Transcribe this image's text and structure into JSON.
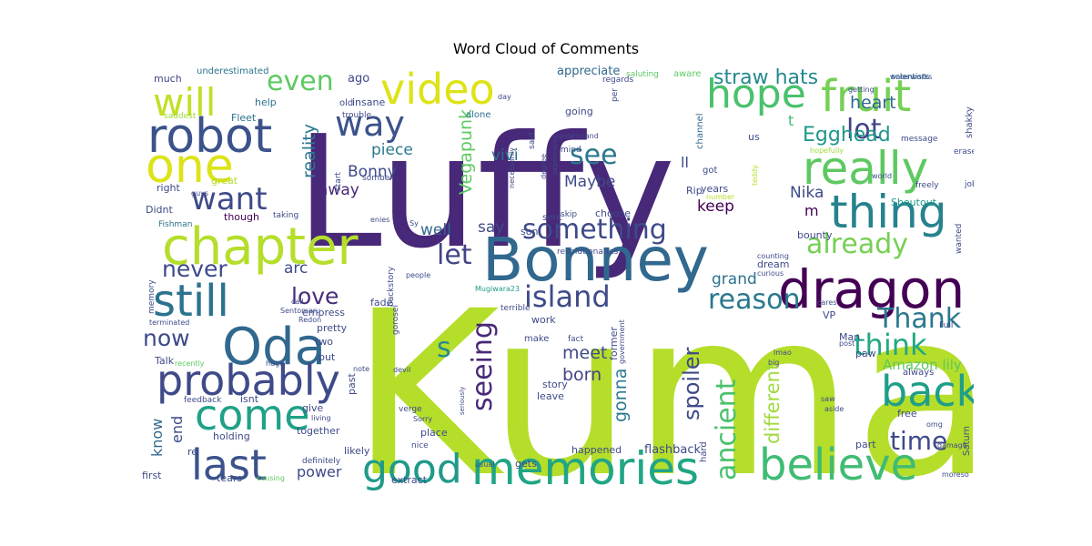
{
  "chart_data": {
    "type": "wordcloud",
    "title": "Word Cloud of Comments",
    "words": [
      {
        "text": "Kuma",
        "weight": 100,
        "color": "#b5de2b"
      },
      {
        "text": "Luffy",
        "weight": 88,
        "color": "#482878"
      },
      {
        "text": "Bonney",
        "weight": 40,
        "color": "#31688e"
      },
      {
        "text": "dragon",
        "weight": 36,
        "color": "#440154"
      },
      {
        "text": "chapter",
        "weight": 34,
        "color": "#b5de2b"
      },
      {
        "text": "robot",
        "weight": 32,
        "color": "#3b528b"
      },
      {
        "text": "memories",
        "weight": 31,
        "color": "#21a585"
      },
      {
        "text": "Oda",
        "weight": 31,
        "color": "#31688e"
      },
      {
        "text": "one",
        "weight": 30,
        "color": "#dde318"
      },
      {
        "text": "really",
        "weight": 30,
        "color": "#5ec962"
      },
      {
        "text": "thing",
        "weight": 30,
        "color": "#26828e"
      },
      {
        "text": "fruit",
        "weight": 30,
        "color": "#75d054"
      },
      {
        "text": "believe",
        "weight": 28,
        "color": "#3fbc73"
      },
      {
        "text": "probably",
        "weight": 28,
        "color": "#3e4a89"
      },
      {
        "text": "still",
        "weight": 28,
        "color": "#2c728e"
      },
      {
        "text": "come",
        "weight": 28,
        "color": "#1fa187"
      },
      {
        "text": "last",
        "weight": 28,
        "color": "#3b528b"
      },
      {
        "text": "video",
        "weight": 27,
        "color": "#dde318"
      },
      {
        "text": "back",
        "weight": 27,
        "color": "#1f9e89"
      },
      {
        "text": "hope",
        "weight": 26,
        "color": "#4ac16d"
      },
      {
        "text": "good",
        "weight": 26,
        "color": "#1f9a8a"
      },
      {
        "text": "will",
        "weight": 26,
        "color": "#c2df23"
      },
      {
        "text": "way",
        "weight": 24,
        "color": "#3b528b"
      },
      {
        "text": "want",
        "weight": 22,
        "color": "#3e4a89"
      },
      {
        "text": "something",
        "weight": 22,
        "color": "#3e4a89"
      },
      {
        "text": "ancient",
        "weight": 22,
        "color": "#4ac16d"
      },
      {
        "text": "island",
        "weight": 21,
        "color": "#3e4a89"
      },
      {
        "text": "reason",
        "weight": 21,
        "color": "#2a788e"
      },
      {
        "text": "seeing",
        "weight": 21,
        "color": "#482878"
      },
      {
        "text": "think",
        "weight": 21,
        "color": "#22a884"
      },
      {
        "text": "Thank",
        "weight": 21,
        "color": "#2a788e"
      },
      {
        "text": "even",
        "weight": 21,
        "color": "#5ec962"
      },
      {
        "text": "lot",
        "weight": 21,
        "color": "#414487"
      },
      {
        "text": "see",
        "weight": 21,
        "color": "#2a788e"
      },
      {
        "text": "let",
        "weight": 21,
        "color": "#414487"
      },
      {
        "text": "already",
        "weight": 20,
        "color": "#75d054"
      },
      {
        "text": "time",
        "weight": 20,
        "color": "#3e4a89"
      },
      {
        "text": "love",
        "weight": 17,
        "color": "#472d7b"
      },
      {
        "text": "never",
        "weight": 17,
        "color": "#3e4a89"
      },
      {
        "text": "now",
        "weight": 17,
        "color": "#3e4a89"
      },
      {
        "text": "s",
        "weight": 17,
        "color": "#23898e"
      },
      {
        "text": "Egghead",
        "weight": 17,
        "color": "#1f968b"
      },
      {
        "text": "straw hats",
        "weight": 14,
        "color": "#23898e"
      },
      {
        "text": "different",
        "weight": 14,
        "color": "#9fda3a"
      },
      {
        "text": "spoiler",
        "weight": 14,
        "color": "#3e4a89"
      },
      {
        "text": "reality",
        "weight": 12,
        "color": "#2a788e"
      },
      {
        "text": "gonna",
        "weight": 12,
        "color": "#2a788e"
      },
      {
        "text": "Vegapunk",
        "weight": 12,
        "color": "#5ec962"
      },
      {
        "text": "heart",
        "weight": 12,
        "color": "#31688e"
      },
      {
        "text": "meet",
        "weight": 12,
        "color": "#3e4a89"
      },
      {
        "text": "born",
        "weight": 12,
        "color": "#414487"
      },
      {
        "text": "Maybe",
        "weight": 11,
        "color": "#3e4a89"
      },
      {
        "text": "vivi",
        "weight": 11,
        "color": "#2c728e"
      },
      {
        "text": "piece",
        "weight": 11,
        "color": "#2a788e"
      },
      {
        "text": "Bonny",
        "weight": 11,
        "color": "#3e4a89"
      },
      {
        "text": "away",
        "weight": 11,
        "color": "#482878"
      },
      {
        "text": "keep",
        "weight": 11,
        "color": "#440154"
      },
      {
        "text": "arc",
        "weight": 11,
        "color": "#3e4a89"
      },
      {
        "text": "well",
        "weight": 11,
        "color": "#31688e"
      },
      {
        "text": "say",
        "weight": 11,
        "color": "#3e4a89"
      },
      {
        "text": "grand",
        "weight": 11,
        "color": "#2c728e"
      },
      {
        "text": "Nika",
        "weight": 11,
        "color": "#3e4a89"
      },
      {
        "text": "know",
        "weight": 10,
        "color": "#31688e"
      },
      {
        "text": "end",
        "weight": 10,
        "color": "#3e4a89"
      },
      {
        "text": "power",
        "weight": 10,
        "color": "#3e4a89"
      },
      {
        "text": "Amazon lily",
        "weight": 9,
        "color": "#5ec962"
      },
      {
        "text": "flashback",
        "weight": 8,
        "color": "#3e4a89"
      },
      {
        "text": "ll",
        "weight": 10,
        "color": "#3e4a89"
      },
      {
        "text": "m",
        "weight": 10,
        "color": "#440154"
      },
      {
        "text": "t",
        "weight": 10,
        "color": "#3fbc73"
      },
      {
        "text": "appreciate",
        "weight": 8,
        "color": "#31688e"
      },
      {
        "text": "much",
        "weight": 7,
        "color": "#414487"
      },
      {
        "text": "underestimated",
        "weight": 6,
        "color": "#2c728e"
      },
      {
        "text": "ago",
        "weight": 7,
        "color": "#3e4a89"
      },
      {
        "text": "saluting",
        "weight": 5,
        "color": "#5ec962"
      },
      {
        "text": "aware",
        "weight": 5,
        "color": "#5ec962"
      },
      {
        "text": "scientists",
        "weight": 5,
        "color": "#2c728e"
      },
      {
        "text": "help",
        "weight": 7,
        "color": "#2c728e"
      },
      {
        "text": "old",
        "weight": 6,
        "color": "#3e4a89"
      },
      {
        "text": "insane",
        "weight": 6,
        "color": "#3e4a89"
      },
      {
        "text": "alone",
        "weight": 6,
        "color": "#2c728e"
      },
      {
        "text": "going",
        "weight": 7,
        "color": "#3e4a89"
      },
      {
        "text": "regards",
        "weight": 5,
        "color": "#3e4a89"
      },
      {
        "text": "day",
        "weight": 5,
        "color": "#3e4a89"
      },
      {
        "text": "per",
        "weight": 5,
        "color": "#3e4a89"
      },
      {
        "text": "channel",
        "weight": 6,
        "color": "#31688e"
      },
      {
        "text": "shakky",
        "weight": 6,
        "color": "#3e4a89"
      },
      {
        "text": "saddest",
        "weight": 5,
        "color": "#9fda3a"
      },
      {
        "text": "Fleet",
        "weight": 7,
        "color": "#2c728e"
      },
      {
        "text": "trouble",
        "weight": 5,
        "color": "#3e4a89"
      },
      {
        "text": "mind",
        "weight": 5,
        "color": "#3e4a89"
      },
      {
        "text": "us",
        "weight": 6,
        "color": "#3e4a89"
      },
      {
        "text": "message",
        "weight": 5,
        "color": "#3e4a89"
      },
      {
        "text": "erased",
        "weight": 5,
        "color": "#3e4a89"
      },
      {
        "text": "hopefully",
        "weight": 5,
        "color": "#9fda3a"
      },
      {
        "text": "teddy",
        "weight": 4,
        "color": "#b5de2b"
      },
      {
        "text": "great",
        "weight": 7,
        "color": "#b5de2b"
      },
      {
        "text": "right",
        "weight": 7,
        "color": "#3e4a89"
      },
      {
        "text": "guys",
        "weight": 5,
        "color": "#3e4a89"
      },
      {
        "text": "start",
        "weight": 5,
        "color": "#3e4a89"
      },
      {
        "text": "necessarily",
        "weight": 4,
        "color": "#3e4a89"
      },
      {
        "text": "said",
        "weight": 5,
        "color": "#3e4a89"
      },
      {
        "text": "somber",
        "weight": 5,
        "color": "#3e4a89"
      },
      {
        "text": "degree",
        "weight": 5,
        "color": "#3e4a89"
      },
      {
        "text": "experienced",
        "weight": 4,
        "color": "#3e4a89"
      },
      {
        "text": "Rip",
        "weight": 6,
        "color": "#3e4a89"
      },
      {
        "text": "got",
        "weight": 6,
        "color": "#3e4a89"
      },
      {
        "text": "years",
        "weight": 6,
        "color": "#3e4a89"
      },
      {
        "text": "number",
        "weight": 4,
        "color": "#b5de2b"
      },
      {
        "text": "world",
        "weight": 5,
        "color": "#3e4a89"
      },
      {
        "text": "freely",
        "weight": 5,
        "color": "#3e4a89"
      },
      {
        "text": "job",
        "weight": 5,
        "color": "#3e4a89"
      },
      {
        "text": "Didnt",
        "weight": 7,
        "color": "#3e4a89"
      },
      {
        "text": "Fishman",
        "weight": 5,
        "color": "#2c728e"
      },
      {
        "text": "though",
        "weight": 7,
        "color": "#440154"
      },
      {
        "text": "taking",
        "weight": 5,
        "color": "#3e4a89"
      },
      {
        "text": "enies",
        "weight": 5,
        "color": "#3e4a89"
      },
      {
        "text": "Sy",
        "weight": 5,
        "color": "#3e4a89"
      },
      {
        "text": "son",
        "weight": 7,
        "color": "#3e4a89"
      },
      {
        "text": "sent",
        "weight": 6,
        "color": "#3e4a89"
      },
      {
        "text": "skip",
        "weight": 5,
        "color": "#3e4a89"
      },
      {
        "text": "choose",
        "weight": 7,
        "color": "#3e4a89"
      },
      {
        "text": "Shoutout",
        "weight": 7,
        "color": "#1f9a8a"
      },
      {
        "text": "bounty",
        "weight": 7,
        "color": "#3e4a89"
      },
      {
        "text": "wanted",
        "weight": 5,
        "color": "#3e4a89"
      },
      {
        "text": "memory",
        "weight": 5,
        "color": "#3e4a89"
      },
      {
        "text": "revolutionaries",
        "weight": 5,
        "color": "#3e4a89"
      },
      {
        "text": "dream",
        "weight": 7,
        "color": "#3e4a89"
      },
      {
        "text": "counting",
        "weight": 5,
        "color": "#3e4a89"
      },
      {
        "text": "curious",
        "weight": 5,
        "color": "#3e4a89"
      },
      {
        "text": "call",
        "weight": 5,
        "color": "#3e4a89"
      },
      {
        "text": "Redon",
        "weight": 5,
        "color": "#3e4a89"
      },
      {
        "text": "fade",
        "weight": 7,
        "color": "#3e4a89"
      },
      {
        "text": "backstory",
        "weight": 6,
        "color": "#3e4a89"
      },
      {
        "text": "people",
        "weight": 5,
        "color": "#3e4a89"
      },
      {
        "text": "Mugiwara23",
        "weight": 5,
        "color": "#1f9a8a"
      },
      {
        "text": "VP",
        "weight": 7,
        "color": "#3e4a89"
      },
      {
        "text": "cares",
        "weight": 5,
        "color": "#3e4a89"
      },
      {
        "text": "Full",
        "weight": 5,
        "color": "#3e4a89"
      },
      {
        "text": "empress",
        "weight": 7,
        "color": "#3e4a89"
      },
      {
        "text": "gorosei",
        "weight": 6,
        "color": "#3e4a89"
      },
      {
        "text": "terrible",
        "weight": 5,
        "color": "#3e4a89"
      },
      {
        "text": "Man",
        "weight": 7,
        "color": "#3e4a89"
      },
      {
        "text": "terminated",
        "weight": 5,
        "color": "#3e4a89"
      },
      {
        "text": "Sentomaru",
        "weight": 5,
        "color": "#3e4a89"
      },
      {
        "text": "work",
        "weight": 7,
        "color": "#3e4a89"
      },
      {
        "text": "pretty",
        "weight": 7,
        "color": "#3e4a89"
      },
      {
        "text": "two",
        "weight": 7,
        "color": "#3e4a89"
      },
      {
        "text": "former",
        "weight": 7,
        "color": "#3e4a89"
      },
      {
        "text": "make",
        "weight": 6,
        "color": "#3e4a89"
      },
      {
        "text": "fact",
        "weight": 5,
        "color": "#3e4a89"
      },
      {
        "text": "recently",
        "weight": 5,
        "color": "#5ec962"
      },
      {
        "text": "huge",
        "weight": 5,
        "color": "#3e4a89"
      },
      {
        "text": "Talk",
        "weight": 7,
        "color": "#3e4a89"
      },
      {
        "text": "put",
        "weight": 7,
        "color": "#3e4a89"
      },
      {
        "text": "note",
        "weight": 5,
        "color": "#3e4a89"
      },
      {
        "text": "government",
        "weight": 5,
        "color": "#3e4a89"
      },
      {
        "text": "lmao",
        "weight": 5,
        "color": "#3e4a89"
      },
      {
        "text": "post",
        "weight": 5,
        "color": "#3e4a89"
      },
      {
        "text": "big",
        "weight": 5,
        "color": "#3e4a89"
      },
      {
        "text": "paw",
        "weight": 7,
        "color": "#3e4a89"
      },
      {
        "text": "always",
        "weight": 7,
        "color": "#3e4a89"
      },
      {
        "text": "past",
        "weight": 7,
        "color": "#3e4a89"
      },
      {
        "text": "devil",
        "weight": 5,
        "color": "#3e4a89"
      },
      {
        "text": "story",
        "weight": 7,
        "color": "#3e4a89"
      },
      {
        "text": "leave",
        "weight": 7,
        "color": "#3e4a89"
      },
      {
        "text": "feedback",
        "weight": 5,
        "color": "#3e4a89"
      },
      {
        "text": "isnt",
        "weight": 7,
        "color": "#3e4a89"
      },
      {
        "text": "verge",
        "weight": 5,
        "color": "#3e4a89"
      },
      {
        "text": "seriously",
        "weight": 4,
        "color": "#3e4a89"
      },
      {
        "text": "saw",
        "weight": 5,
        "color": "#3e4a89"
      },
      {
        "text": "aside",
        "weight": 5,
        "color": "#3e4a89"
      },
      {
        "text": "give",
        "weight": 7,
        "color": "#3e4a89"
      },
      {
        "text": "living",
        "weight": 5,
        "color": "#3e4a89"
      },
      {
        "text": "Sorry",
        "weight": 5,
        "color": "#3e4a89"
      },
      {
        "text": "free",
        "weight": 7,
        "color": "#3e4a89"
      },
      {
        "text": "omg",
        "weight": 5,
        "color": "#3e4a89"
      },
      {
        "text": "holding",
        "weight": 7,
        "color": "#3e4a89"
      },
      {
        "text": "together",
        "weight": 7,
        "color": "#3e4a89"
      },
      {
        "text": "place",
        "weight": 7,
        "color": "#3e4a89"
      },
      {
        "text": "nice",
        "weight": 5,
        "color": "#3e4a89"
      },
      {
        "text": "damage",
        "weight": 5,
        "color": "#3e4a89"
      },
      {
        "text": "re",
        "weight": 7,
        "color": "#3e4a89"
      },
      {
        "text": "likely",
        "weight": 7,
        "color": "#3e4a89"
      },
      {
        "text": "definitely",
        "weight": 5,
        "color": "#3e4a89"
      },
      {
        "text": "part",
        "weight": 7,
        "color": "#3e4a89"
      },
      {
        "text": "happened",
        "weight": 7,
        "color": "#3e4a89"
      },
      {
        "text": "hard",
        "weight": 6,
        "color": "#3e4a89"
      },
      {
        "text": "usual",
        "weight": 5,
        "color": "#3e4a89"
      },
      {
        "text": "gets",
        "weight": 7,
        "color": "#3e4a89"
      },
      {
        "text": "Saturn",
        "weight": 6,
        "color": "#3e4a89"
      },
      {
        "text": "first",
        "weight": 7,
        "color": "#3e4a89"
      },
      {
        "text": "tears",
        "weight": 7,
        "color": "#3e4a89"
      },
      {
        "text": "causing",
        "weight": 5,
        "color": "#5ec962"
      },
      {
        "text": "extract",
        "weight": 7,
        "color": "#3e4a89"
      },
      {
        "text": "moreso",
        "weight": 5,
        "color": "#3e4a89"
      },
      {
        "text": "waterworks",
        "weight": 5,
        "color": "#3e4a89"
      },
      {
        "text": "getting",
        "weight": 5,
        "color": "#3e4a89"
      },
      {
        "text": "understand",
        "weight": 5,
        "color": "#3e4a89"
      }
    ]
  }
}
